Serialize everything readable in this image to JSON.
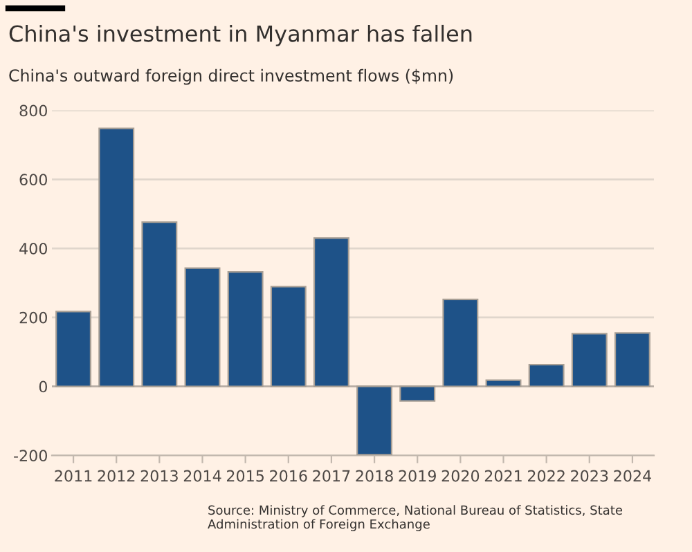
{
  "chart_data": {
    "type": "bar",
    "title": "China's investment in Myanmar has fallen",
    "subtitle": "China's outward foreign direct investment flows ($mn)",
    "categories": [
      "2011",
      "2012",
      "2013",
      "2014",
      "2015",
      "2016",
      "2017",
      "2018",
      "2019",
      "2020",
      "2021",
      "2022",
      "2023",
      "2024"
    ],
    "values": [
      217,
      748,
      476,
      343,
      332,
      289,
      430,
      -198,
      -42,
      252,
      18,
      63,
      153,
      155
    ],
    "color": "#1e5288",
    "ylim": [
      -200,
      800
    ],
    "yticks": [
      -200,
      0,
      200,
      400,
      600,
      800
    ],
    "grid": "y",
    "annotations": [
      "Source: Ministry of Commerce, National Bureau of Statistics, State Administration of Foreign Exchange"
    ]
  }
}
